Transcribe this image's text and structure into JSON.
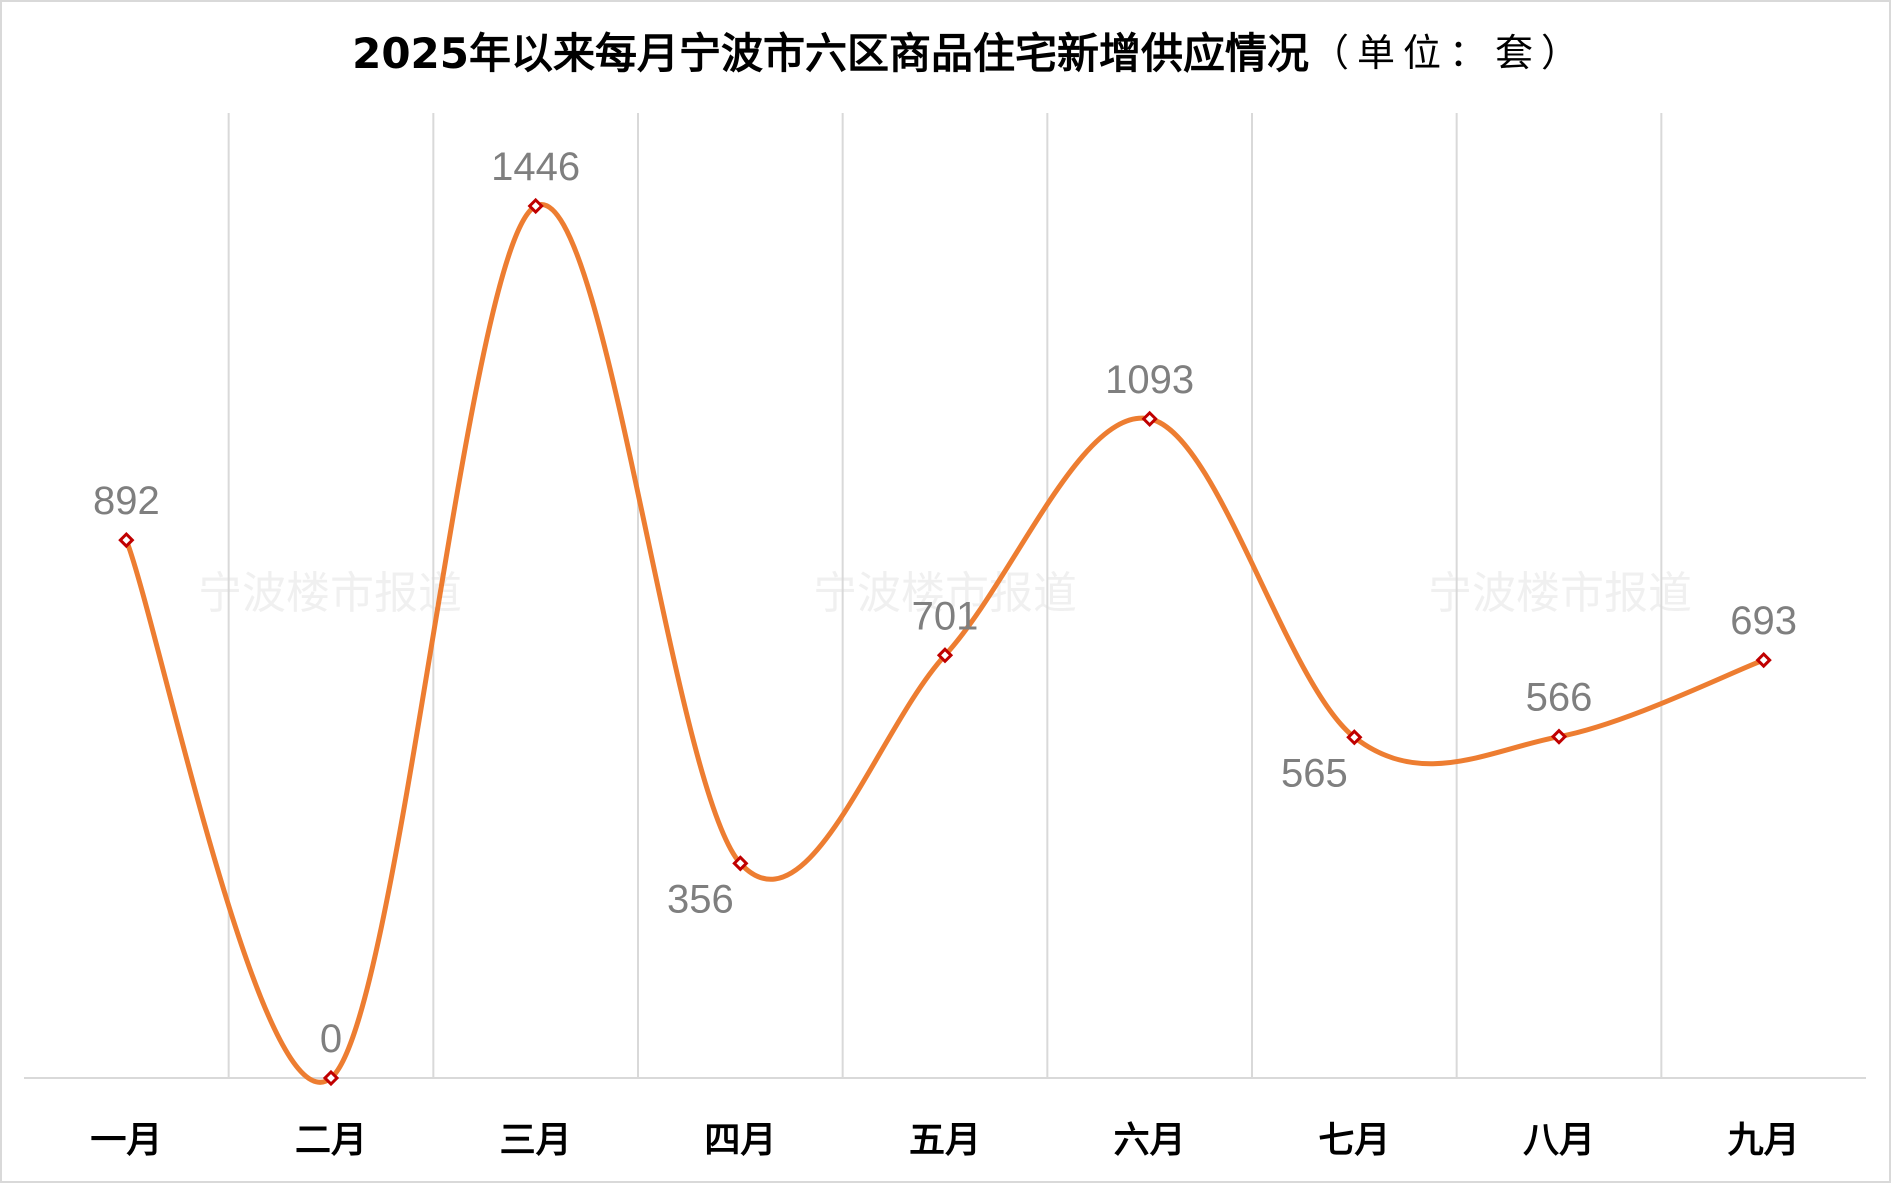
{
  "chart_data": {
    "type": "line",
    "title": "2025年以来每月宁波市六区商品住宅新增供应情况",
    "unit_note": "（单位：套）",
    "categories": [
      "一月",
      "二月",
      "三月",
      "四月",
      "五月",
      "六月",
      "七月",
      "八月",
      "九月"
    ],
    "series": [
      {
        "values": [
          892,
          0,
          1446,
          356,
          701,
          1093,
          565,
          566,
          693
        ]
      }
    ],
    "ylim": [
      0,
      1600
    ],
    "grid": "vertical",
    "smooth": true,
    "show_data_labels": true,
    "colors": {
      "line": "#ed7d31",
      "marker": "#c00000",
      "label": "#7f7f7f",
      "grid": "#d9d9d9"
    },
    "watermark": [
      "宁波楼市报道",
      "宁波楼市报道",
      "宁波楼市报道"
    ]
  }
}
